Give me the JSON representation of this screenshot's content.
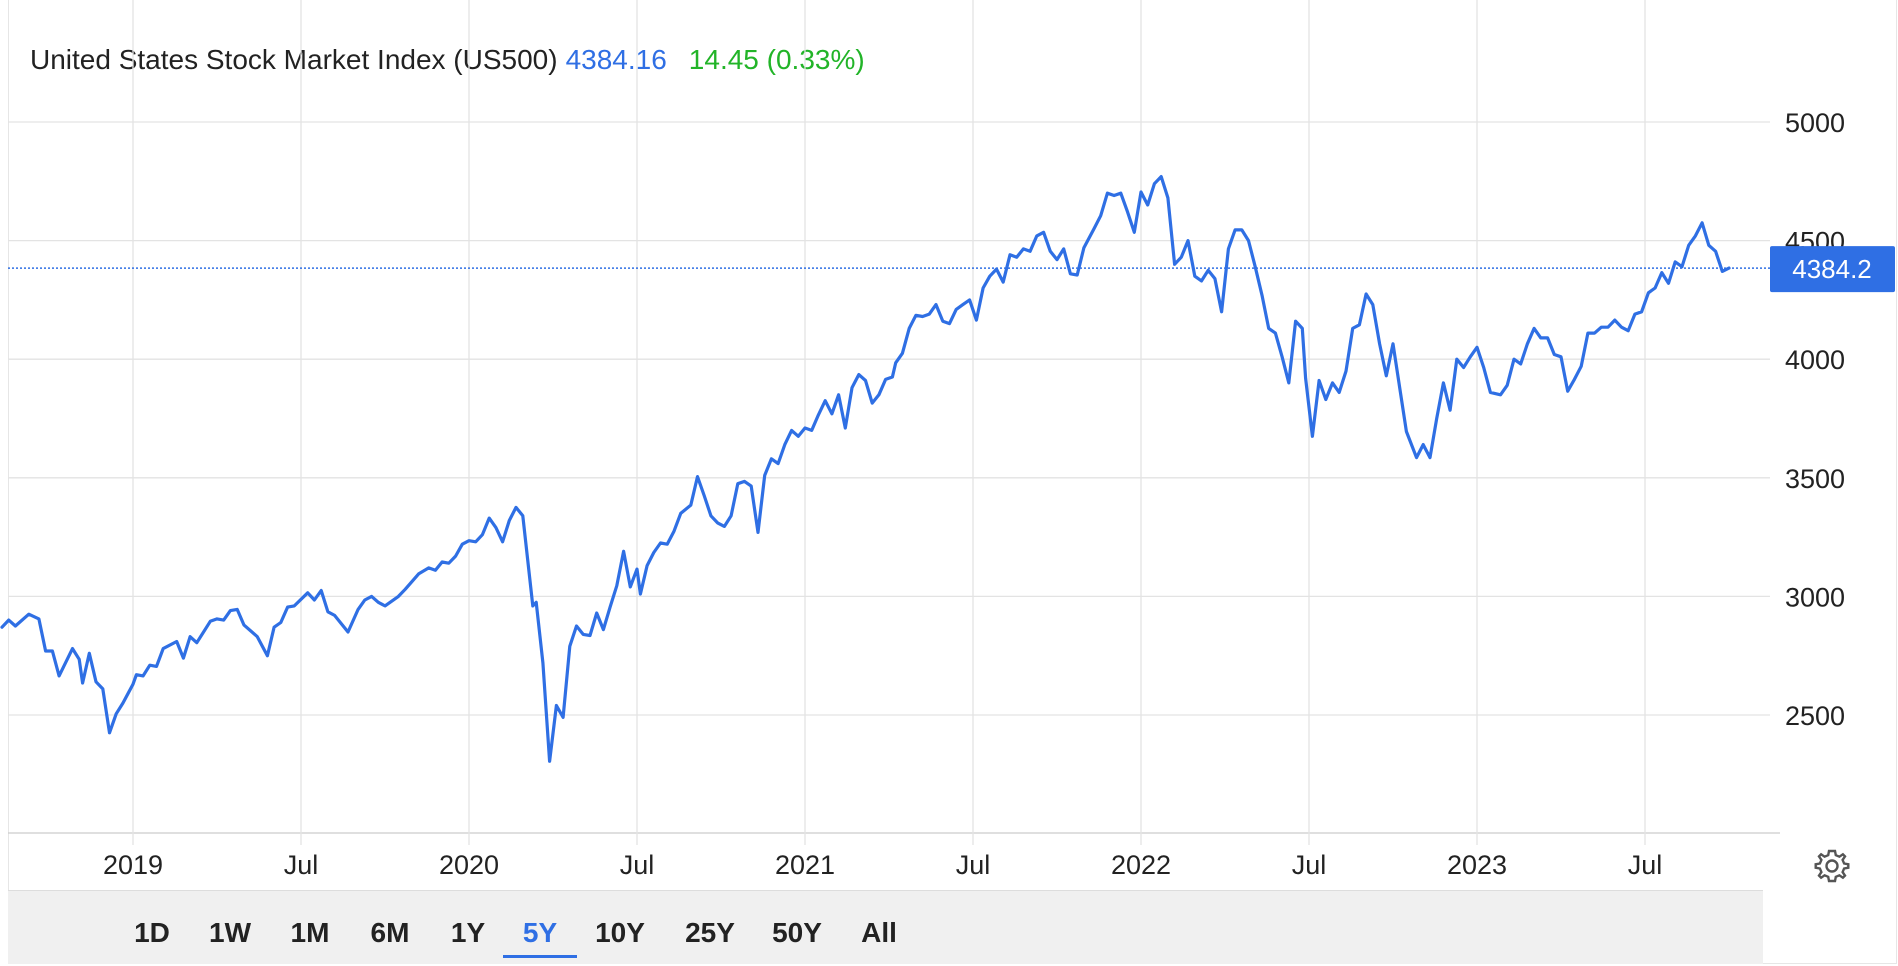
{
  "header": {
    "name": "United States Stock Market Index (US500)",
    "price": "4384.16",
    "change": "14.45 (0.33%)"
  },
  "colors": {
    "line": "#2f6fe4",
    "price": "#2f6fe4",
    "change_up": "#22b428",
    "label_bg": "#2f6fe4",
    "grid": "#e3e3e3"
  },
  "last_value_label": "4384.2",
  "ranges": [
    "1D",
    "1W",
    "1M",
    "6M",
    "1Y",
    "5Y",
    "10Y",
    "25Y",
    "50Y",
    "All"
  ],
  "active_range": "5Y",
  "settings_icon": "gear-icon",
  "chart_data": {
    "type": "line",
    "title": "",
    "xlabel": "",
    "ylabel": "",
    "x_range": [
      2018.61,
      2023.66
    ],
    "ylim": [
      2000,
      5050
    ],
    "y_ticks": [
      2500,
      3000,
      3500,
      4000,
      4500,
      5000
    ],
    "x_ticks": [
      {
        "label": "2019",
        "x": 2019.0
      },
      {
        "label": "Jul",
        "x": 2019.5
      },
      {
        "label": "2020",
        "x": 2020.0
      },
      {
        "label": "Jul",
        "x": 2020.5
      },
      {
        "label": "2021",
        "x": 2021.0
      },
      {
        "label": "Jul",
        "x": 2021.5
      },
      {
        "label": "2022",
        "x": 2022.0
      },
      {
        "label": "Jul",
        "x": 2022.5
      },
      {
        "label": "2023",
        "x": 2023.0
      },
      {
        "label": "Jul",
        "x": 2023.5
      }
    ],
    "grid": true,
    "last_value": 4384.16,
    "series": [
      {
        "name": "",
        "points": [
          [
            2018.61,
            2870
          ],
          [
            2018.63,
            2900
          ],
          [
            2018.65,
            2875
          ],
          [
            2018.69,
            2925
          ],
          [
            2018.72,
            2905
          ],
          [
            2018.74,
            2770
          ],
          [
            2018.76,
            2770
          ],
          [
            2018.78,
            2665
          ],
          [
            2018.82,
            2780
          ],
          [
            2018.84,
            2735
          ],
          [
            2018.85,
            2635
          ],
          [
            2018.87,
            2760
          ],
          [
            2018.89,
            2640
          ],
          [
            2018.91,
            2610
          ],
          [
            2018.93,
            2425
          ],
          [
            2018.95,
            2505
          ],
          [
            2018.97,
            2550
          ],
          [
            2019.0,
            2630
          ],
          [
            2019.01,
            2670
          ],
          [
            2019.03,
            2665
          ],
          [
            2019.05,
            2710
          ],
          [
            2019.07,
            2705
          ],
          [
            2019.09,
            2780
          ],
          [
            2019.13,
            2810
          ],
          [
            2019.15,
            2740
          ],
          [
            2019.17,
            2830
          ],
          [
            2019.19,
            2805
          ],
          [
            2019.23,
            2895
          ],
          [
            2019.25,
            2905
          ],
          [
            2019.27,
            2900
          ],
          [
            2019.29,
            2940
          ],
          [
            2019.31,
            2945
          ],
          [
            2019.33,
            2880
          ],
          [
            2019.37,
            2830
          ],
          [
            2019.4,
            2750
          ],
          [
            2019.42,
            2870
          ],
          [
            2019.44,
            2890
          ],
          [
            2019.46,
            2955
          ],
          [
            2019.48,
            2960
          ],
          [
            2019.52,
            3015
          ],
          [
            2019.54,
            2985
          ],
          [
            2019.56,
            3025
          ],
          [
            2019.58,
            2935
          ],
          [
            2019.6,
            2920
          ],
          [
            2019.64,
            2850
          ],
          [
            2019.67,
            2945
          ],
          [
            2019.69,
            2985
          ],
          [
            2019.71,
            3000
          ],
          [
            2019.73,
            2975
          ],
          [
            2019.75,
            2960
          ],
          [
            2019.79,
            3000
          ],
          [
            2019.81,
            3030
          ],
          [
            2019.85,
            3095
          ],
          [
            2019.88,
            3120
          ],
          [
            2019.9,
            3110
          ],
          [
            2019.92,
            3145
          ],
          [
            2019.94,
            3140
          ],
          [
            2019.96,
            3170
          ],
          [
            2019.98,
            3220
          ],
          [
            2020.0,
            3235
          ],
          [
            2020.02,
            3230
          ],
          [
            2020.04,
            3260
          ],
          [
            2020.06,
            3330
          ],
          [
            2020.08,
            3290
          ],
          [
            2020.1,
            3230
          ],
          [
            2020.12,
            3320
          ],
          [
            2020.14,
            3375
          ],
          [
            2020.16,
            3340
          ],
          [
            2020.19,
            2960
          ],
          [
            2020.2,
            2975
          ],
          [
            2020.22,
            2720
          ],
          [
            2020.24,
            2305
          ],
          [
            2020.26,
            2540
          ],
          [
            2020.28,
            2490
          ],
          [
            2020.3,
            2790
          ],
          [
            2020.32,
            2875
          ],
          [
            2020.34,
            2840
          ],
          [
            2020.36,
            2835
          ],
          [
            2020.38,
            2930
          ],
          [
            2020.4,
            2860
          ],
          [
            2020.42,
            2955
          ],
          [
            2020.44,
            3045
          ],
          [
            2020.46,
            3190
          ],
          [
            2020.48,
            3040
          ],
          [
            2020.5,
            3115
          ],
          [
            2020.51,
            3010
          ],
          [
            2020.53,
            3130
          ],
          [
            2020.55,
            3185
          ],
          [
            2020.57,
            3225
          ],
          [
            2020.59,
            3220
          ],
          [
            2020.61,
            3275
          ],
          [
            2020.63,
            3350
          ],
          [
            2020.66,
            3385
          ],
          [
            2020.68,
            3505
          ],
          [
            2020.7,
            3425
          ],
          [
            2020.72,
            3340
          ],
          [
            2020.74,
            3310
          ],
          [
            2020.76,
            3295
          ],
          [
            2020.78,
            3340
          ],
          [
            2020.8,
            3475
          ],
          [
            2020.82,
            3485
          ],
          [
            2020.84,
            3465
          ],
          [
            2020.86,
            3270
          ],
          [
            2020.88,
            3510
          ],
          [
            2020.9,
            3580
          ],
          [
            2020.92,
            3560
          ],
          [
            2020.94,
            3640
          ],
          [
            2020.96,
            3700
          ],
          [
            2020.98,
            3675
          ],
          [
            2021.0,
            3710
          ],
          [
            2021.02,
            3700
          ],
          [
            2021.04,
            3765
          ],
          [
            2021.06,
            3825
          ],
          [
            2021.08,
            3770
          ],
          [
            2021.1,
            3850
          ],
          [
            2021.12,
            3710
          ],
          [
            2021.14,
            3880
          ],
          [
            2021.16,
            3935
          ],
          [
            2021.18,
            3910
          ],
          [
            2021.2,
            3815
          ],
          [
            2021.22,
            3850
          ],
          [
            2021.24,
            3915
          ],
          [
            2021.26,
            3925
          ],
          [
            2021.27,
            3985
          ],
          [
            2021.29,
            4025
          ],
          [
            2021.31,
            4130
          ],
          [
            2021.33,
            4185
          ],
          [
            2021.35,
            4180
          ],
          [
            2021.37,
            4190
          ],
          [
            2021.39,
            4230
          ],
          [
            2021.41,
            4160
          ],
          [
            2021.43,
            4150
          ],
          [
            2021.45,
            4210
          ],
          [
            2021.47,
            4230
          ],
          [
            2021.49,
            4250
          ],
          [
            2021.51,
            4165
          ],
          [
            2021.53,
            4300
          ],
          [
            2021.55,
            4350
          ],
          [
            2021.57,
            4380
          ],
          [
            2021.59,
            4325
          ],
          [
            2021.61,
            4440
          ],
          [
            2021.63,
            4430
          ],
          [
            2021.65,
            4465
          ],
          [
            2021.67,
            4455
          ],
          [
            2021.69,
            4520
          ],
          [
            2021.71,
            4535
          ],
          [
            2021.73,
            4455
          ],
          [
            2021.75,
            4420
          ],
          [
            2021.77,
            4465
          ],
          [
            2021.79,
            4360
          ],
          [
            2021.81,
            4355
          ],
          [
            2021.83,
            4470
          ],
          [
            2021.86,
            4550
          ],
          [
            2021.88,
            4605
          ],
          [
            2021.9,
            4700
          ],
          [
            2021.92,
            4690
          ],
          [
            2021.94,
            4700
          ],
          [
            2021.96,
            4620
          ],
          [
            2021.98,
            4535
          ],
          [
            2022.0,
            4705
          ],
          [
            2022.02,
            4650
          ],
          [
            2022.04,
            4740
          ],
          [
            2022.06,
            4770
          ],
          [
            2022.08,
            4680
          ],
          [
            2022.1,
            4400
          ],
          [
            2022.12,
            4430
          ],
          [
            2022.14,
            4500
          ],
          [
            2022.16,
            4350
          ],
          [
            2022.18,
            4330
          ],
          [
            2022.2,
            4375
          ],
          [
            2022.22,
            4340
          ],
          [
            2022.24,
            4200
          ],
          [
            2022.26,
            4465
          ],
          [
            2022.28,
            4545
          ],
          [
            2022.3,
            4545
          ],
          [
            2022.32,
            4500
          ],
          [
            2022.34,
            4390
          ],
          [
            2022.36,
            4270
          ],
          [
            2022.38,
            4130
          ],
          [
            2022.4,
            4110
          ],
          [
            2022.42,
            4010
          ],
          [
            2022.44,
            3900
          ],
          [
            2022.46,
            4160
          ],
          [
            2022.48,
            4130
          ],
          [
            2022.49,
            3920
          ],
          [
            2022.51,
            3675
          ],
          [
            2022.53,
            3910
          ],
          [
            2022.55,
            3830
          ],
          [
            2022.57,
            3900
          ],
          [
            2022.59,
            3860
          ],
          [
            2022.61,
            3950
          ],
          [
            2022.63,
            4130
          ],
          [
            2022.65,
            4145
          ],
          [
            2022.67,
            4275
          ],
          [
            2022.69,
            4230
          ],
          [
            2022.71,
            4065
          ],
          [
            2022.73,
            3930
          ],
          [
            2022.75,
            4065
          ],
          [
            2022.77,
            3880
          ],
          [
            2022.79,
            3695
          ],
          [
            2022.82,
            3585
          ],
          [
            2022.84,
            3640
          ],
          [
            2022.86,
            3585
          ],
          [
            2022.88,
            3750
          ],
          [
            2022.9,
            3900
          ],
          [
            2022.92,
            3785
          ],
          [
            2022.94,
            4000
          ],
          [
            2022.96,
            3965
          ],
          [
            2022.98,
            4010
          ],
          [
            2023.0,
            4050
          ],
          [
            2023.02,
            3965
          ],
          [
            2023.04,
            3860
          ],
          [
            2023.07,
            3850
          ],
          [
            2023.09,
            3890
          ],
          [
            2023.11,
            4000
          ],
          [
            2023.13,
            3980
          ],
          [
            2023.15,
            4065
          ],
          [
            2023.17,
            4130
          ],
          [
            2023.19,
            4090
          ],
          [
            2023.21,
            4090
          ],
          [
            2023.23,
            4020
          ],
          [
            2023.25,
            4010
          ],
          [
            2023.27,
            3865
          ],
          [
            2023.29,
            3915
          ],
          [
            2023.31,
            3970
          ],
          [
            2023.33,
            4110
          ],
          [
            2023.35,
            4110
          ],
          [
            2023.37,
            4135
          ],
          [
            2023.39,
            4135
          ],
          [
            2023.41,
            4165
          ],
          [
            2023.43,
            4135
          ],
          [
            2023.45,
            4120
          ],
          [
            2023.47,
            4190
          ],
          [
            2023.49,
            4200
          ],
          [
            2023.51,
            4280
          ],
          [
            2023.53,
            4300
          ],
          [
            2023.55,
            4365
          ],
          [
            2023.57,
            4320
          ],
          [
            2023.59,
            4410
          ],
          [
            2023.61,
            4390
          ],
          [
            2023.63,
            4480
          ],
          [
            2023.65,
            4520
          ],
          [
            2023.67,
            4575
          ],
          [
            2023.69,
            4480
          ],
          [
            2023.71,
            4455
          ],
          [
            2023.73,
            4370
          ],
          [
            2023.75,
            4384
          ]
        ]
      }
    ]
  }
}
